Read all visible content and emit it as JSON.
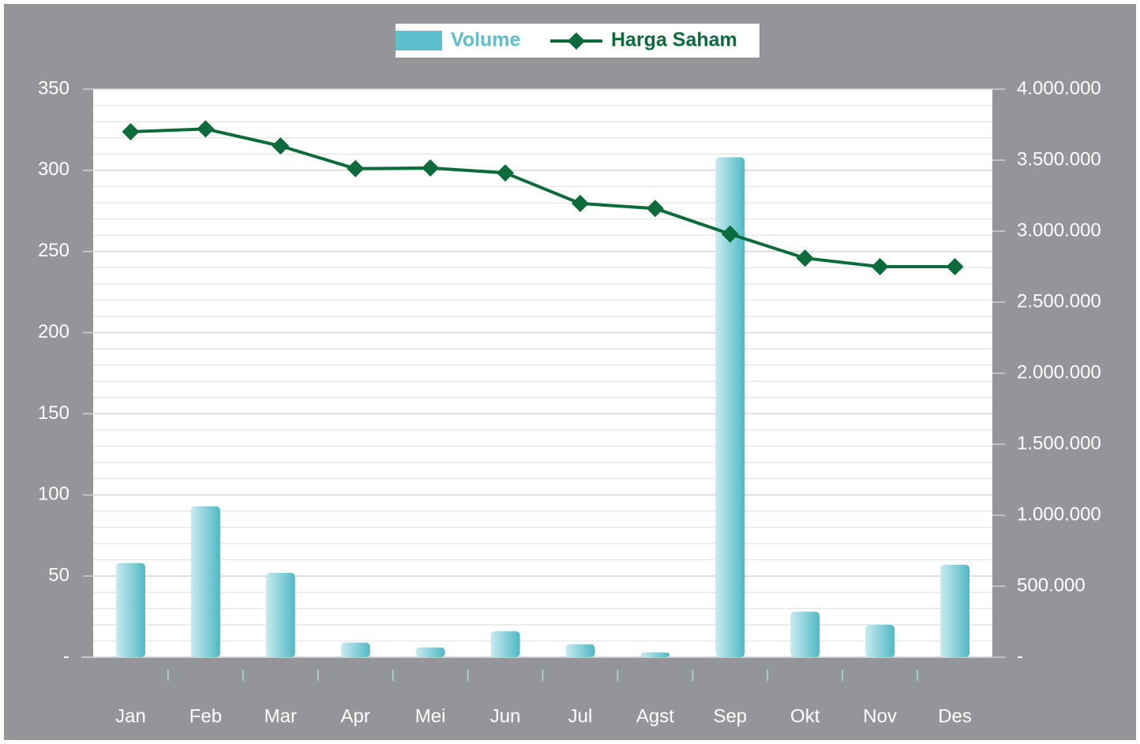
{
  "chart_data": {
    "type": "combo",
    "categories": [
      "Jan",
      "Feb",
      "Mar",
      "Apr",
      "Mei",
      "Jun",
      "Jul",
      "Agst",
      "Sep",
      "Okt",
      "Nov",
      "Des"
    ],
    "series": [
      {
        "name": "Volume",
        "type": "bar",
        "color": "#5bc0cb",
        "values": [
          58,
          93,
          52,
          9,
          6,
          16,
          8,
          3,
          308,
          28,
          20,
          57
        ]
      },
      {
        "name": "Harga Saham",
        "type": "line",
        "axis": "y2",
        "color": "#0b6b3a",
        "values": [
          3700000,
          3720000,
          3600000,
          3440000,
          3445000,
          3410000,
          3195000,
          3160000,
          2980000,
          2810000,
          2750000,
          2750000
        ]
      }
    ],
    "ylim": [
      0,
      350
    ],
    "yticks": [
      {
        "value": 0,
        "label": "-"
      },
      50,
      100,
      150,
      200,
      250,
      300,
      350
    ],
    "y2lim": [
      0,
      4000000
    ],
    "y2ticks": [
      {
        "value": 0,
        "label": "-"
      },
      {
        "value": 500000,
        "label": "500.000"
      },
      {
        "value": 1000000,
        "label": "1.000.000"
      },
      {
        "value": 1500000,
        "label": "1.500.000"
      },
      {
        "value": 2000000,
        "label": "2.000.000"
      },
      {
        "value": 2500000,
        "label": "2.500.000"
      },
      {
        "value": 3000000,
        "label": "3.000.000"
      },
      {
        "value": 3500000,
        "label": "3.500.000"
      },
      {
        "value": 4000000,
        "label": "4.000.000"
      }
    ],
    "grid": true,
    "legend": "top"
  }
}
